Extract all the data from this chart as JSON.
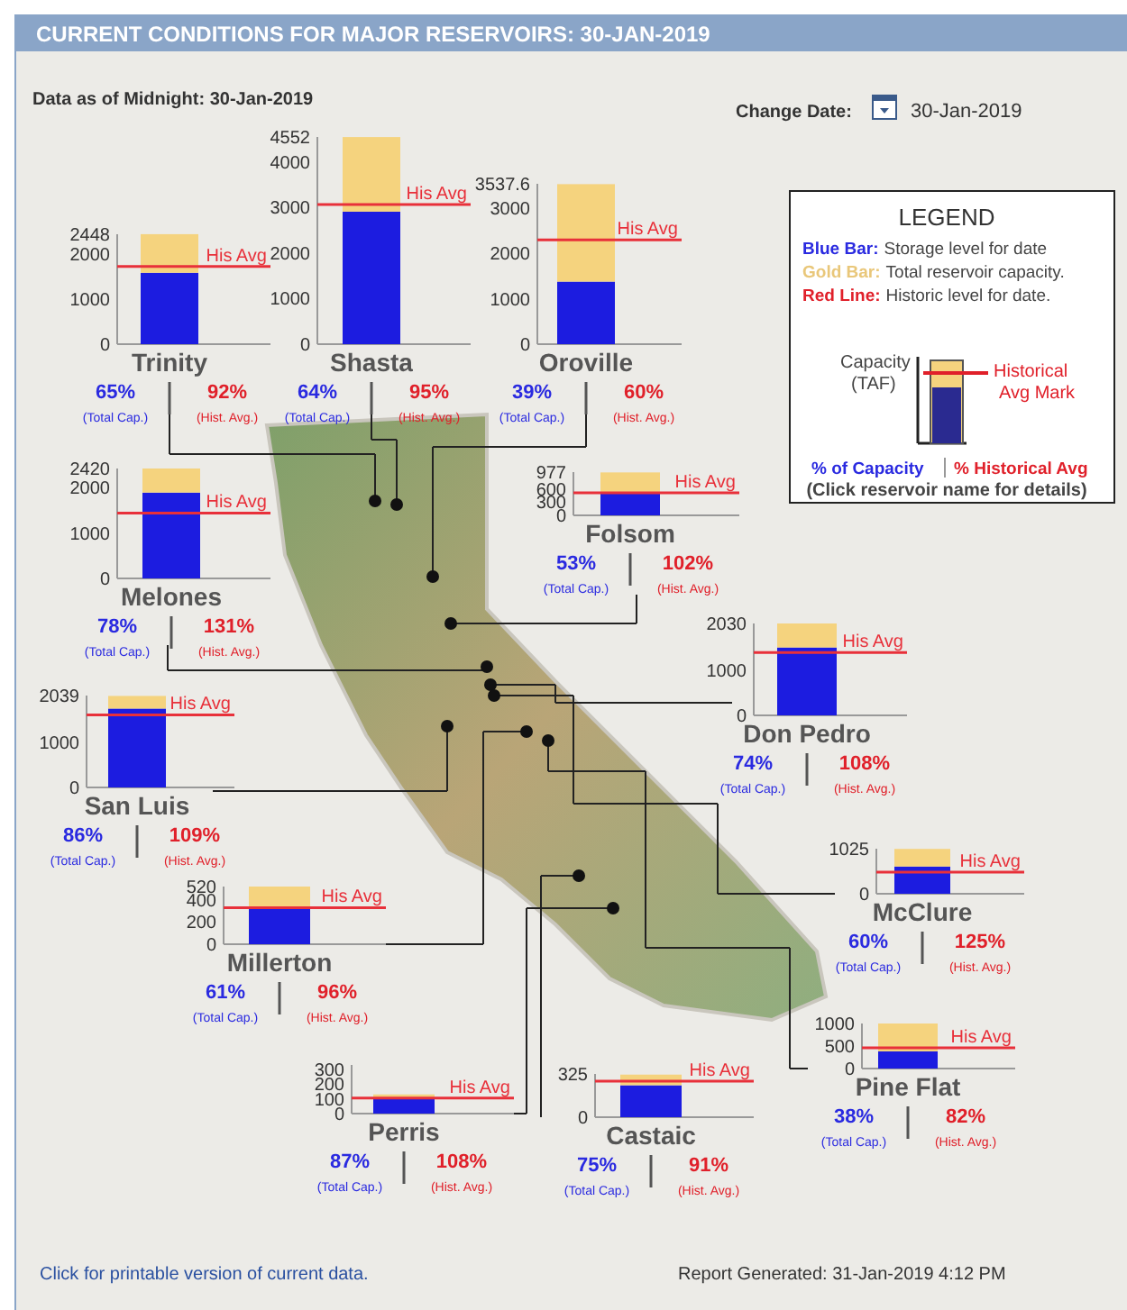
{
  "chart_data": [
    {
      "type": "other",
      "title": "CURRENT CONDITIONS FOR MAJOR RESERVOIRS: 30-JAN-2019",
      "annotations": [
        "Data as of Midnight: 30-Jan-2019",
        "Change Date:",
        "30-Jan-2019",
        "Click for printable version of current data.",
        "Report Generated: 31-Jan-2019 4:12 PM"
      ]
    },
    {
      "type": "other",
      "title": "LEGEND",
      "annotations": [
        "Blue Bar:",
        "Storage level for date",
        "Gold Bar:",
        "Total reservoir capacity.",
        "Red Line:",
        "Historic level for date.",
        "Capacity (TAF)",
        "Historical Avg Mark",
        "% of Capacity",
        "% Historical Avg",
        "(Click reservoir name for details)"
      ]
    },
    {
      "type": "bar",
      "title": "Trinity",
      "stacked": true,
      "categories": [
        null
      ],
      "series": [
        {
          "color": "#1c1ce0",
          "values": [
            1590
          ]
        },
        {
          "color": "#f5d37e",
          "values": [
            860
          ]
        }
      ],
      "ylim": [
        0,
        2448
      ],
      "yticks": [
        0,
        1000,
        2000,
        2448
      ],
      "ref_lines": [
        {
          "axis": "y",
          "value": 1730,
          "label": "His Avg",
          "color": "#e8303a"
        }
      ],
      "annotations": [
        "65%",
        "(Total Cap.)",
        "92%",
        "(Hist. Avg.)"
      ]
    },
    {
      "type": "bar",
      "title": "Shasta",
      "stacked": true,
      "categories": [
        null
      ],
      "series": [
        {
          "color": "#1c1ce0",
          "values": [
            2910
          ]
        },
        {
          "color": "#f5d37e",
          "values": [
            1640
          ]
        }
      ],
      "ylim": [
        0,
        4552
      ],
      "yticks": [
        0,
        1000,
        2000,
        3000,
        4000,
        4552
      ],
      "ref_lines": [
        {
          "axis": "y",
          "value": 3070,
          "label": "His Avg",
          "color": "#e8303a"
        }
      ],
      "annotations": [
        "64%",
        "(Total Cap.)",
        "95%",
        "(Hist. Avg.)"
      ]
    },
    {
      "type": "bar",
      "title": "Oroville",
      "stacked": true,
      "categories": [
        null
      ],
      "series": [
        {
          "color": "#1c1ce0",
          "values": [
            1380
          ]
        },
        {
          "color": "#f5d37e",
          "values": [
            2150
          ]
        }
      ],
      "ylim": [
        0,
        3537.6
      ],
      "yticks": [
        0,
        1000,
        2000,
        3000,
        3537.6
      ],
      "ref_lines": [
        {
          "axis": "y",
          "value": 2300,
          "label": "His Avg",
          "color": "#e8303a"
        }
      ],
      "annotations": [
        "39%",
        "(Total Cap.)",
        "60%",
        "(Hist. Avg.)"
      ]
    },
    {
      "type": "bar",
      "title": "Folsom",
      "stacked": true,
      "categories": [
        null
      ],
      "series": [
        {
          "color": "#1c1ce0",
          "values": [
            520
          ]
        },
        {
          "color": "#f5d37e",
          "values": [
            450
          ]
        }
      ],
      "ylim": [
        0,
        977
      ],
      "yticks": [
        0,
        300,
        600,
        977
      ],
      "ref_lines": [
        {
          "axis": "y",
          "value": 510,
          "label": "His Avg",
          "color": "#e8303a"
        }
      ],
      "annotations": [
        "53%",
        "(Total Cap.)",
        "102%",
        "(Hist. Avg.)"
      ]
    },
    {
      "type": "bar",
      "title": "Melones",
      "stacked": true,
      "categories": [
        null
      ],
      "series": [
        {
          "color": "#1c1ce0",
          "values": [
            1890
          ]
        },
        {
          "color": "#f5d37e",
          "values": [
            530
          ]
        }
      ],
      "ylim": [
        0,
        2420
      ],
      "yticks": [
        0,
        1000,
        2000,
        2420
      ],
      "ref_lines": [
        {
          "axis": "y",
          "value": 1440,
          "label": "His Avg",
          "color": "#e8303a"
        }
      ],
      "annotations": [
        "78%",
        "(Total Cap.)",
        "131%",
        "(Hist. Avg.)"
      ]
    },
    {
      "type": "bar",
      "title": "San Luis",
      "stacked": true,
      "categories": [
        null
      ],
      "series": [
        {
          "color": "#1c1ce0",
          "values": [
            1750
          ]
        },
        {
          "color": "#f5d37e",
          "values": [
            280
          ]
        }
      ],
      "ylim": [
        0,
        2039
      ],
      "yticks": [
        0,
        1000,
        2039
      ],
      "ref_lines": [
        {
          "axis": "y",
          "value": 1610,
          "label": "His Avg",
          "color": "#e8303a"
        }
      ],
      "annotations": [
        "86%",
        "(Total Cap.)",
        "109%",
        "(Hist. Avg.)"
      ]
    },
    {
      "type": "bar",
      "title": "Don Pedro",
      "stacked": true,
      "categories": [
        null
      ],
      "series": [
        {
          "color": "#1c1ce0",
          "values": [
            1500
          ]
        },
        {
          "color": "#f5d37e",
          "values": [
            530
          ]
        }
      ],
      "ylim": [
        0,
        2030
      ],
      "yticks": [
        0,
        1000,
        2030
      ],
      "ref_lines": [
        {
          "axis": "y",
          "value": 1390,
          "label": "His Avg",
          "color": "#e8303a"
        }
      ],
      "annotations": [
        "74%",
        "(Total Cap.)",
        "108%",
        "(Hist. Avg.)"
      ]
    },
    {
      "type": "bar",
      "title": "McClure",
      "stacked": true,
      "categories": [
        null
      ],
      "series": [
        {
          "color": "#1c1ce0",
          "values": [
            620
          ]
        },
        {
          "color": "#f5d37e",
          "values": [
            400
          ]
        }
      ],
      "ylim": [
        0,
        1025
      ],
      "yticks": [
        0,
        1025
      ],
      "ref_lines": [
        {
          "axis": "y",
          "value": 490,
          "label": "His Avg",
          "color": "#e8303a"
        }
      ],
      "annotations": [
        "60%",
        "(Total Cap.)",
        "125%",
        "(Hist. Avg.)"
      ]
    },
    {
      "type": "bar",
      "title": "Millerton",
      "stacked": true,
      "categories": [
        null
      ],
      "series": [
        {
          "color": "#1c1ce0",
          "values": [
            320
          ]
        },
        {
          "color": "#f5d37e",
          "values": [
            200
          ]
        }
      ],
      "ylim": [
        0,
        520
      ],
      "yticks": [
        0,
        200,
        400,
        520
      ],
      "ref_lines": [
        {
          "axis": "y",
          "value": 330,
          "label": "His Avg",
          "color": "#e8303a"
        }
      ],
      "annotations": [
        "61%",
        "(Total Cap.)",
        "96%",
        "(Hist. Avg.)"
      ]
    },
    {
      "type": "bar",
      "title": "Perris",
      "stacked": true,
      "categories": [
        null
      ],
      "series": [
        {
          "color": "#1c1ce0",
          "values": [
            110
          ]
        },
        {
          "color": "#f5d37e",
          "values": [
            20
          ]
        }
      ],
      "ylim": [
        0,
        330
      ],
      "yticks": [
        0,
        100,
        200,
        300
      ],
      "ref_lines": [
        {
          "axis": "y",
          "value": 105,
          "label": "His Avg",
          "color": "#e8303a"
        }
      ],
      "annotations": [
        "87%",
        "(Total Cap.)",
        "108%",
        "(Hist. Avg.)"
      ]
    },
    {
      "type": "bar",
      "title": "Castaic",
      "stacked": true,
      "categories": [
        null
      ],
      "series": [
        {
          "color": "#1c1ce0",
          "values": [
            240
          ]
        },
        {
          "color": "#f5d37e",
          "values": [
            80
          ]
        }
      ],
      "ylim": [
        0,
        325
      ],
      "yticks": [
        0,
        325
      ],
      "ref_lines": [
        {
          "axis": "y",
          "value": 270,
          "label": "His Avg",
          "color": "#e8303a"
        }
      ],
      "annotations": [
        "75%",
        "(Total Cap.)",
        "91%",
        "(Hist. Avg.)"
      ]
    },
    {
      "type": "bar",
      "title": "Pine Flat",
      "stacked": true,
      "categories": [
        null
      ],
      "series": [
        {
          "color": "#1c1ce0",
          "values": [
            380
          ]
        },
        {
          "color": "#f5d37e",
          "values": [
            620
          ]
        }
      ],
      "ylim": [
        0,
        1000
      ],
      "yticks": [
        0,
        500,
        1000
      ],
      "ref_lines": [
        {
          "axis": "y",
          "value": 460,
          "label": "His Avg",
          "color": "#e8303a"
        }
      ],
      "annotations": [
        "38%",
        "(Total Cap.)",
        "82%",
        "(Hist. Avg.)"
      ]
    }
  ]
}
